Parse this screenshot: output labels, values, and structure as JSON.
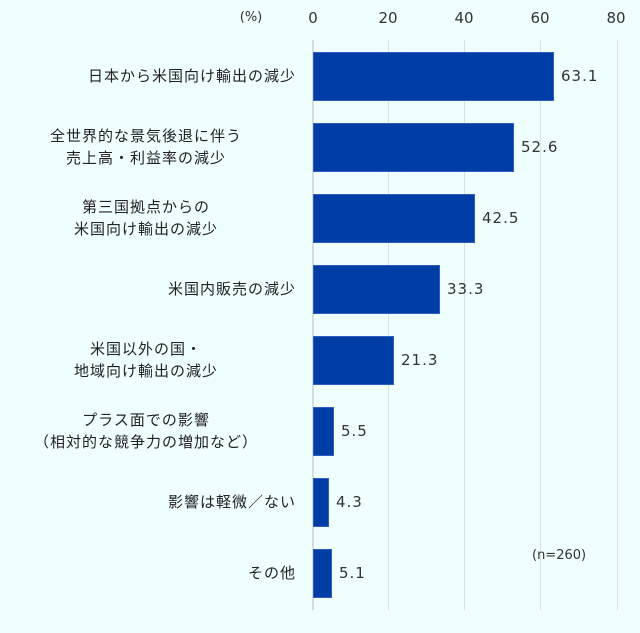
{
  "chart_data": {
    "type": "bar",
    "orientation": "horizontal",
    "title": "",
    "xlabel": "(%)",
    "ylabel": "",
    "xlim": [
      0,
      80
    ],
    "xticks": [
      0,
      20,
      40,
      60,
      80
    ],
    "grid": true,
    "legend": null,
    "categories": [
      "日本から米国向け輸出の減少",
      "全世界的な景気後退に伴う売上高・利益率の減少",
      "第三国拠点からの米国向け輸出の減少",
      "米国内販売の減少",
      "米国以外の国・地域向け輸出の減少",
      "プラス面での影響（相対的な競争力の増加など）",
      "影響は軽微／ない",
      "その他"
    ],
    "values": [
      63.1,
      52.6,
      42.5,
      33.3,
      21.3,
      5.5,
      4.3,
      5.1
    ],
    "annotations": [
      "(n=260)"
    ],
    "bar_color": "#003da5"
  },
  "axis": {
    "unit": "(%)",
    "ticks": [
      "0",
      "20",
      "40",
      "60",
      "80"
    ]
  },
  "rows": [
    {
      "line1": "日本から米国向け輸出の減少",
      "line2": "",
      "value": "63.1"
    },
    {
      "line1": "全世界的な景気後退に伴う",
      "line2": "売上高・利益率の減少",
      "value": "52.6"
    },
    {
      "line1": "第三国拠点からの",
      "line2": "米国向け輸出の減少",
      "value": "42.5"
    },
    {
      "line1": "米国内販売の減少",
      "line2": "",
      "value": "33.3"
    },
    {
      "line1": "米国以外の国・",
      "line2": "地域向け輸出の減少",
      "value": "21.3"
    },
    {
      "line1": "プラス面での影響",
      "line2": "（相対的な競争力の増加など）",
      "value": "5.5"
    },
    {
      "line1": "影響は軽微／ない",
      "line2": "",
      "value": "4.3"
    },
    {
      "line1": "その他",
      "line2": "",
      "value": "5.1"
    }
  ],
  "note": "(n=260)",
  "colors": {
    "bar": "#003da5",
    "background": "#effffe",
    "grid": "#d9dfe0"
  }
}
